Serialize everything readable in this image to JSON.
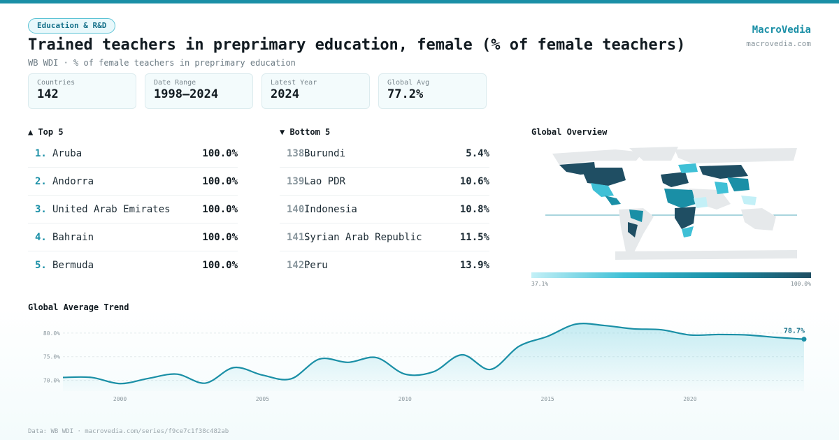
{
  "header": {
    "tag": "Education & R&D",
    "title": "Trained teachers in preprimary education, female (% of female teachers)",
    "subtitle": "WB WDI · % of female teachers in preprimary education",
    "brand": "MacroVedia",
    "brand_url": "macrovedia.com"
  },
  "stats": [
    {
      "label": "Countries",
      "value": "142"
    },
    {
      "label": "Date Range",
      "value": "1998–2024"
    },
    {
      "label": "Latest Year",
      "value": "2024"
    },
    {
      "label": "Global Avg",
      "value": "77.2%"
    }
  ],
  "top5": {
    "title": "▲ Top 5",
    "items": [
      {
        "rank": "1.",
        "name": "Aruba",
        "value": "100.0%"
      },
      {
        "rank": "2.",
        "name": "Andorra",
        "value": "100.0%"
      },
      {
        "rank": "3.",
        "name": "United Arab Emirates",
        "value": "100.0%"
      },
      {
        "rank": "4.",
        "name": "Bahrain",
        "value": "100.0%"
      },
      {
        "rank": "5.",
        "name": "Bermuda",
        "value": "100.0%"
      }
    ]
  },
  "bottom5": {
    "title": "▼ Bottom 5",
    "items": [
      {
        "rank": "138.",
        "name": "Burundi",
        "value": "5.4%"
      },
      {
        "rank": "139.",
        "name": "Lao PDR",
        "value": "10.6%"
      },
      {
        "rank": "140.",
        "name": "Indonesia",
        "value": "10.8%"
      },
      {
        "rank": "141.",
        "name": "Syrian Arab Republic",
        "value": "11.5%"
      },
      {
        "rank": "142.",
        "name": "Peru",
        "value": "13.9%"
      }
    ]
  },
  "map": {
    "title": "Global Overview",
    "legend_min": "37.1%",
    "legend_max": "100.0%",
    "colors": [
      "#c3f0f7",
      "#3fc0d6",
      "#1a8fa6",
      "#1f4e63"
    ],
    "no_data_color": "#e6e9eb"
  },
  "trend_title": "Global Average Trend",
  "chart_data": {
    "type": "area",
    "x": [
      1998,
      1999,
      2000,
      2001,
      2002,
      2003,
      2004,
      2005,
      2006,
      2007,
      2008,
      2009,
      2010,
      2011,
      2012,
      2013,
      2014,
      2015,
      2016,
      2017,
      2018,
      2019,
      2020,
      2021,
      2022,
      2023,
      2024
    ],
    "values": [
      70.6,
      70.6,
      69.3,
      70.4,
      71.3,
      69.4,
      72.7,
      71.1,
      70.3,
      74.5,
      73.8,
      74.8,
      71.3,
      71.8,
      75.4,
      72.3,
      77.2,
      79.3,
      81.9,
      81.6,
      80.9,
      80.7,
      79.6,
      79.7,
      79.6,
      79.1,
      78.7
    ],
    "end_label": "78.7%",
    "x_ticks": [
      2000,
      2005,
      2010,
      2015,
      2020
    ],
    "y_ticks": [
      "70.0%",
      "75.0%",
      "80.0%"
    ],
    "y_tick_values": [
      70,
      75,
      80
    ],
    "xlim": [
      1998,
      2024
    ],
    "ylim": [
      68,
      82.5
    ],
    "grid": true,
    "color": "#1a8fa6"
  },
  "footer": "Data: WB WDI · macrovedia.com/series/f9ce7c1f38c482ab"
}
